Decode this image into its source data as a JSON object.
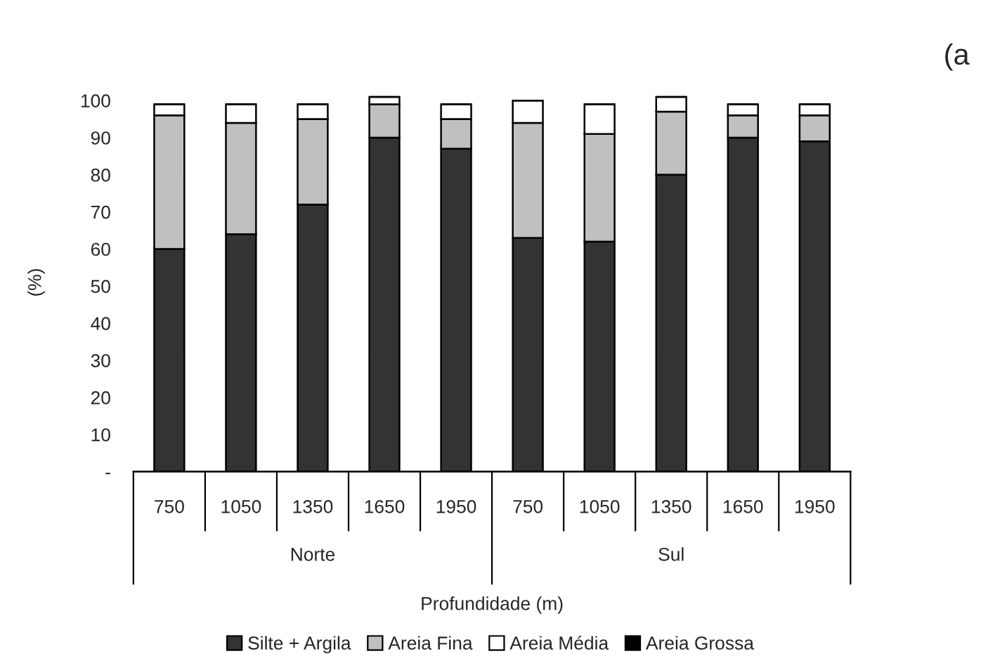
{
  "chart_data": {
    "type": "bar",
    "stacked": true,
    "xlabel": "Profundidade (m)",
    "ylabel": "(%)",
    "categories": [
      "750",
      "1050",
      "1350",
      "1650",
      "1950",
      "750",
      "1050",
      "1350",
      "1650",
      "1950"
    ],
    "series": [
      {
        "name": "Silte + Argila",
        "color": "#333333",
        "values": [
          60,
          64,
          72,
          90,
          87,
          63,
          62,
          80,
          90,
          89
        ]
      },
      {
        "name": "Areia Fina",
        "color": "#c0c0c0",
        "values": [
          36,
          30,
          23,
          9,
          8,
          31,
          29,
          17,
          6,
          7
        ]
      },
      {
        "name": "Areia Média",
        "color": "#ffffff",
        "values": [
          3,
          5,
          4,
          2,
          4,
          6,
          8,
          4,
          3,
          3
        ]
      },
      {
        "name": "Areia Grossa",
        "color": "#000000",
        "values": [
          0,
          0,
          0,
          0,
          0,
          0,
          0,
          0,
          0,
          0
        ]
      }
    ],
    "ylim": [
      0,
      102
    ],
    "yticks": [
      {
        "value": 0,
        "label": "-"
      },
      10,
      20,
      30,
      40,
      50,
      60,
      70,
      80,
      90,
      100
    ],
    "grid": false,
    "legend": "bottom",
    "annotations": [
      "Norte",
      "Sul",
      "(a"
    ]
  }
}
